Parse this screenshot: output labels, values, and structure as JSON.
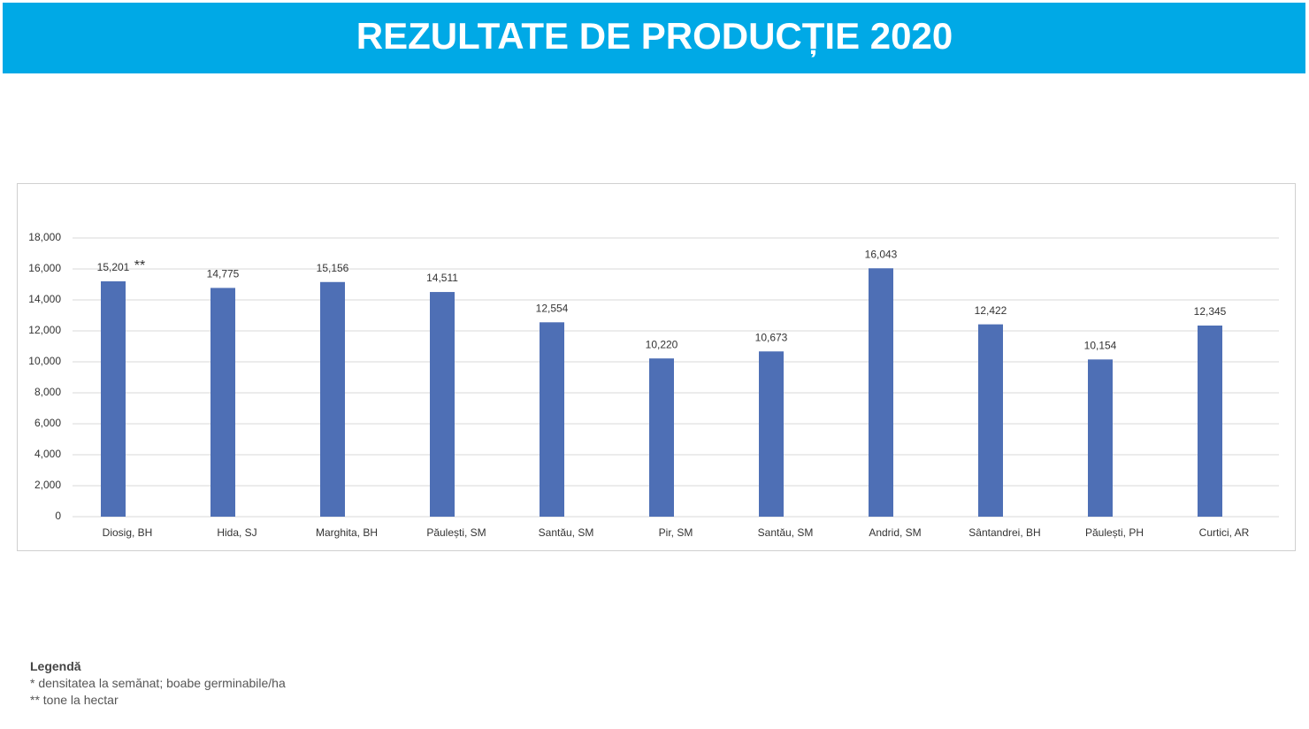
{
  "chart_data": {
    "type": "bar",
    "title": "REZULTATE DE PRODUCȚIE 2020",
    "categories": [
      "Diosig, BH",
      "Hida, SJ",
      "Marghita, BH",
      "Păulești, SM",
      "Santău, SM",
      "Pir, SM",
      "Santău, SM",
      "Andrid, SM",
      "Sântandrei, BH",
      "Păulești, PH",
      "Curtici, AR"
    ],
    "values": [
      15201,
      14775,
      15156,
      14511,
      12554,
      10220,
      10673,
      16043,
      12422,
      10154,
      12345
    ],
    "value_labels": [
      "15,201",
      "14,775",
      "15,156",
      "14,511",
      "12,554",
      "10,220",
      "10,673",
      "16,043",
      "12,422",
      "10,154",
      "12,345"
    ],
    "annotation": "**",
    "color": "#4e6fb5",
    "ylim": [
      0,
      18000
    ],
    "yticks": [
      0,
      {
        "value": 2000,
        "label": "2,000"
      },
      {
        "value": 4000,
        "label": "4,000"
      },
      {
        "value": 6000,
        "label": "6,000"
      },
      {
        "value": 8000,
        "label": "8,000"
      },
      {
        "value": 10000,
        "label": "10,000"
      },
      {
        "value": 12000,
        "label": "12,000"
      },
      {
        "value": 14000,
        "label": "14,000"
      },
      {
        "value": 16000,
        "label": "16,000"
      },
      {
        "value": 18000,
        "label": "18,000"
      }
    ],
    "grid": true
  },
  "legend": {
    "title": "Legendă",
    "items": [
      "* densitatea la semănat; boabe germinabile/ha",
      "** tone la hectar"
    ]
  }
}
